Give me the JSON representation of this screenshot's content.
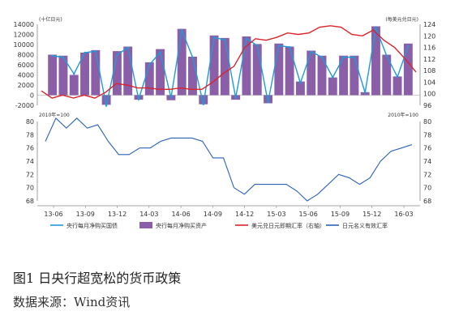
{
  "figure": {
    "caption": "图1 日央行超宽松的货币政策",
    "source": "数据来源：Wind资讯"
  },
  "chart_data": [
    {
      "type": "bar+line",
      "left_unit": "(十亿日元)",
      "right_unit": "(每美元兑日元)",
      "left_ylim": [
        -2000,
        14000
      ],
      "left_ticks": [
        "14000",
        "12000",
        "10000",
        "8000",
        "6000",
        "4000",
        "2000",
        "0",
        "-2000"
      ],
      "right_ylim": [
        96,
        124
      ],
      "right_ticks": [
        "124",
        "120",
        "116",
        "112",
        "108",
        "104",
        "100",
        "96"
      ],
      "x_tick_labels": [
        "13-06",
        "13-09",
        "13-12",
        "14-03",
        "14-06",
        "14-09",
        "14-12",
        "15-03",
        "15-06",
        "15-09",
        "15-12",
        "16-03"
      ],
      "series": [
        {
          "name": "央行每月净购买国债",
          "kind": "line",
          "axis": "left",
          "color": "#1f9bd7",
          "values": [
            7800,
            7500,
            4200,
            8400,
            8700,
            -2100,
            8000,
            9400,
            -800,
            6000,
            8500,
            -500,
            12800,
            7500,
            -1800,
            11400,
            10900,
            -500,
            11200,
            9800,
            -1400,
            9800,
            9500,
            2400,
            8600,
            7500,
            3500,
            7500,
            7500,
            500,
            13300,
            7800,
            3600,
            9700
          ]
        },
        {
          "name": "央行每月净购买资产",
          "kind": "bar",
          "axis": "left",
          "color": "#8a5fa8",
          "values": [
            8000,
            7800,
            4000,
            8400,
            8900,
            -1900,
            8700,
            9600,
            -900,
            6500,
            9100,
            -1000,
            13100,
            7600,
            -1800,
            11800,
            11300,
            -900,
            11600,
            10100,
            -1600,
            10200,
            9600,
            2700,
            8800,
            7800,
            3500,
            7800,
            7800,
            600,
            13600,
            8000,
            3700,
            10200
          ]
        },
        {
          "name": "美元兑日元即期汇率（右轴）",
          "kind": "line",
          "axis": "right",
          "color": "#d9242b",
          "values": [
            101,
            98.5,
            99.5,
            98.5,
            99.5,
            98.5,
            100.5,
            103.5,
            103,
            102,
            102,
            101.5,
            101.5,
            102,
            101.5,
            101.5,
            104,
            107,
            109.5,
            116,
            119,
            118.5,
            119.5,
            121,
            120.5,
            121,
            123,
            123.5,
            123,
            120.5,
            120,
            122,
            118.5,
            116,
            112,
            107.5
          ]
        }
      ]
    },
    {
      "type": "line",
      "unit_left": "2010年=100",
      "unit_right": "2010年=100",
      "ylim": [
        68,
        80
      ],
      "ticks": [
        "80",
        "78",
        "76",
        "74",
        "72",
        "70",
        "68"
      ],
      "series": [
        {
          "name": "日元名义有效汇率",
          "color": "#2a62b8",
          "values": [
            77,
            80.5,
            79,
            80.5,
            79,
            79.5,
            77,
            75,
            75,
            76,
            76,
            77,
            77.5,
            77.5,
            77.5,
            77,
            74.5,
            74.5,
            70,
            69,
            70.5,
            70.5,
            70.5,
            70.5,
            69.5,
            68,
            69,
            70.5,
            72,
            71.5,
            70.5,
            71.5,
            74,
            75.5,
            76,
            76.5
          ]
        }
      ]
    }
  ],
  "legend": [
    {
      "label": "央行每月净购买国债",
      "symbol": "line",
      "color": "#1f9bd7"
    },
    {
      "label": "央行每月净购买资产",
      "symbol": "box",
      "color": "#8a5fa8"
    },
    {
      "label": "美元兑日元即期汇率（右轴）",
      "symbol": "line",
      "color": "#d9242b"
    },
    {
      "label": "日元名义有效汇率",
      "symbol": "line",
      "color": "#2a62b8"
    }
  ]
}
